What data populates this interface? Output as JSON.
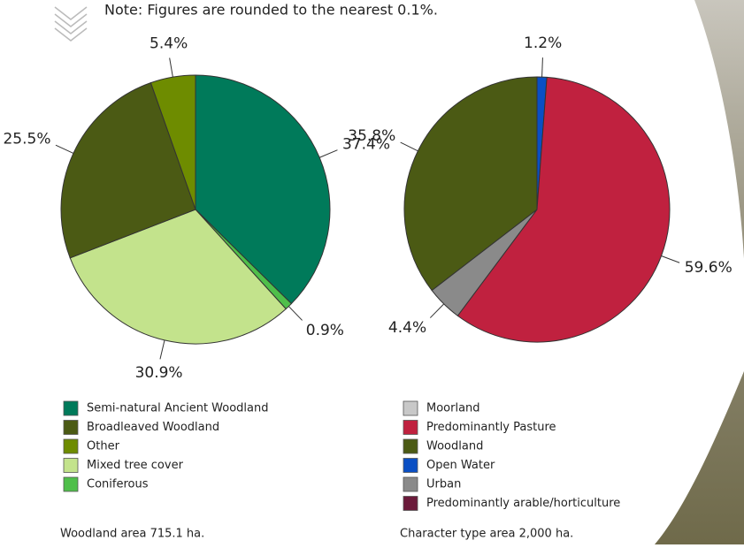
{
  "note": "Note: Figures are rounded to the nearest 0.1%.",
  "chart_data": [
    {
      "type": "pie",
      "values": [
        37.4,
        0.9,
        30.9,
        25.5,
        5.4
      ],
      "value_labels": [
        "37.4%",
        "0.9%",
        "30.9%",
        "25.5%",
        "5.4%"
      ],
      "colors": [
        "#007a5a",
        "#4fbf4a",
        "#c3e38c",
        "#4b5a14",
        "#6e8c00"
      ],
      "legend": [
        {
          "name": "Semi-natural Ancient Woodland",
          "color": "#007a5a"
        },
        {
          "name": "Broadleaved Woodland",
          "color": "#4b5a14"
        },
        {
          "name": "Other",
          "color": "#6e8c00"
        },
        {
          "name": "Mixed tree cover",
          "color": "#c3e38c"
        },
        {
          "name": "Coniferous",
          "color": "#4fbf4a"
        }
      ],
      "caption": "Woodland area 715.1 ha."
    },
    {
      "type": "pie",
      "values": [
        1.2,
        59.6,
        4.4,
        35.8
      ],
      "value_labels": [
        "1.2%",
        "59.6%",
        "4.4%",
        "35.8%"
      ],
      "colors": [
        "#0a4fc4",
        "#c0213f",
        "#8a8a8a",
        "#4b5a14"
      ],
      "legend": [
        {
          "name": "Moorland",
          "color": "#c8c8c8"
        },
        {
          "name": "Predominantly Pasture",
          "color": "#c0213f"
        },
        {
          "name": "Woodland",
          "color": "#4b5a14"
        },
        {
          "name": "Open Water",
          "color": "#0a4fc4"
        },
        {
          "name": "Urban",
          "color": "#8a8a8a"
        },
        {
          "name": "Predominantly arable/horticulture",
          "color": "#6b1a3a"
        }
      ],
      "caption": "Character type area 2,000 ha."
    }
  ]
}
